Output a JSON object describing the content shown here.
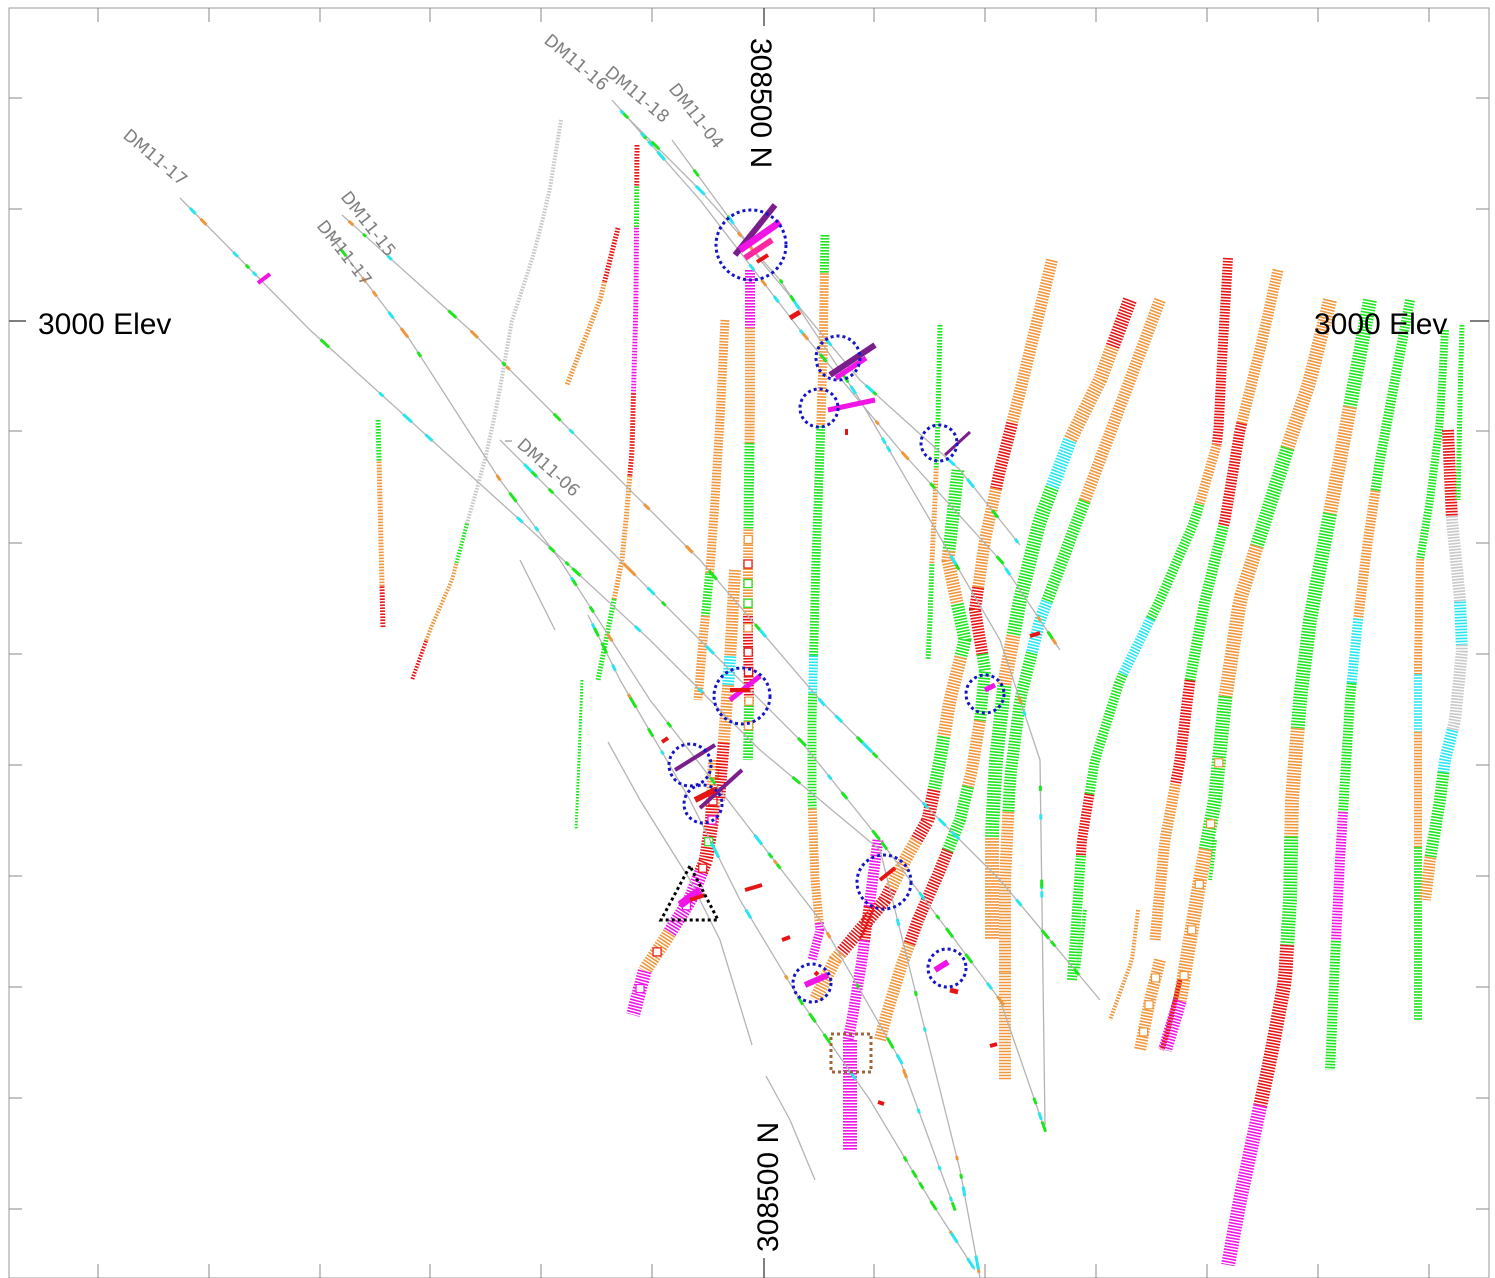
{
  "labels": {
    "elevation_left": "3000 Elev",
    "elevation_right": "3000 Elev",
    "northing_top": "308500 N",
    "northing_bottom": "308500 N"
  },
  "drillholes": [
    {
      "name": "DM11-17",
      "id": "dm11-17-a"
    },
    {
      "name": "DM11-15",
      "id": "dm11-15"
    },
    {
      "name": "DM11-17",
      "id": "dm11-17-b"
    },
    {
      "name": "DM11-16",
      "id": "dm11-16"
    },
    {
      "name": "DM11-18",
      "id": "dm11-18"
    },
    {
      "name": "DM11-04",
      "id": "dm11-04"
    },
    {
      "name": "DM11-06",
      "id": "dm11-06"
    }
  ],
  "colors": {
    "trace": "#b4b4b4",
    "green": "#1ee61e",
    "orange": "#f0963c",
    "red": "#e61414",
    "magenta": "#f014e6",
    "cyan": "#28e6f0",
    "grey": "#c8c8c8",
    "purple": "#7a1e8c",
    "hotpink": "#ff28a0",
    "circle": "#1414c8",
    "triangle": "#000000",
    "box": "#a0643c"
  }
}
